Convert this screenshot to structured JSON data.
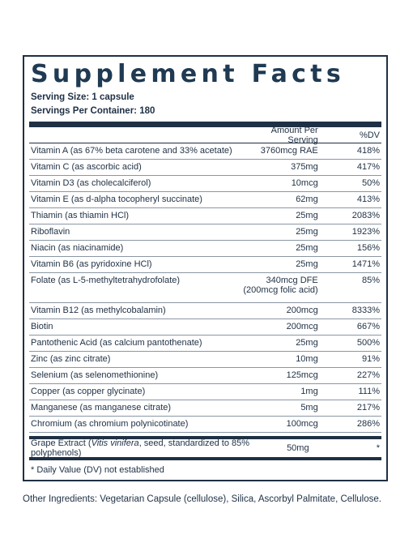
{
  "title": "Supplement Facts",
  "serving_size": "Serving Size: 1 capsule",
  "servings_per_container": "Servings Per Container: 180",
  "header": {
    "amount": "Amount Per Serving",
    "dv": "%DV"
  },
  "rows": [
    {
      "name": "Vitamin A (as 67% beta carotene and 33% acetate)",
      "amount": "3760mcg RAE",
      "dv": "418%"
    },
    {
      "name": "Vitamin C (as ascorbic acid)",
      "amount": "375mg",
      "dv": "417%"
    },
    {
      "name": "Vitamin D3 (as cholecalciferol)",
      "amount": "10mcg",
      "dv": "50%"
    },
    {
      "name": "Vitamin E (as d-alpha tocopheryl succinate)",
      "amount": "62mg",
      "dv": "413%"
    },
    {
      "name": "Thiamin (as thiamin HCl)",
      "amount": "25mg",
      "dv": "2083%"
    },
    {
      "name": "Riboflavin",
      "amount": "25mg",
      "dv": "1923%"
    },
    {
      "name": "Niacin (as niacinamide)",
      "amount": "25mg",
      "dv": "156%"
    },
    {
      "name": "Vitamin B6 (as pyridoxine HCl)",
      "amount": "25mg",
      "dv": "1471%"
    },
    {
      "name": "Folate (as L-5-methyltetrahydrofolate)",
      "amount": "340mcg DFE",
      "amount2": "(200mcg folic acid)",
      "dv": "85%"
    },
    {
      "name": "Vitamin B12 (as methylcobalamin)",
      "amount": "200mcg",
      "dv": "8333%"
    },
    {
      "name": "Biotin",
      "amount": "200mcg",
      "dv": "667%"
    },
    {
      "name": "Pantothenic Acid (as calcium pantothenate)",
      "amount": "25mg",
      "dv": "500%"
    },
    {
      "name": "Zinc (as zinc citrate)",
      "amount": "10mg",
      "dv": "91%"
    },
    {
      "name": "Selenium (as selenomethionine)",
      "amount": "125mcg",
      "dv": "227%"
    },
    {
      "name": "Copper (as copper glycinate)",
      "amount": "1mg",
      "dv": "111%"
    },
    {
      "name": "Manganese (as manganese citrate)",
      "amount": "5mg",
      "dv": "217%"
    },
    {
      "name": "Chromium (as chromium polynicotinate)",
      "amount": "100mcg",
      "dv": "286%"
    }
  ],
  "grape": {
    "name_prefix": "Grape Extract (",
    "name_italic": "Vitis vinifera",
    "name_suffix": ", seed, standardized to 85% polyphenols)",
    "amount": "50mg",
    "dv": "*"
  },
  "footnote": "* Daily Value (DV) not established",
  "other_ingredients": "Other Ingredients: Vegetarian Capsule (cellulose), Silica, Ascorbyl Palmitate, Cellulose."
}
